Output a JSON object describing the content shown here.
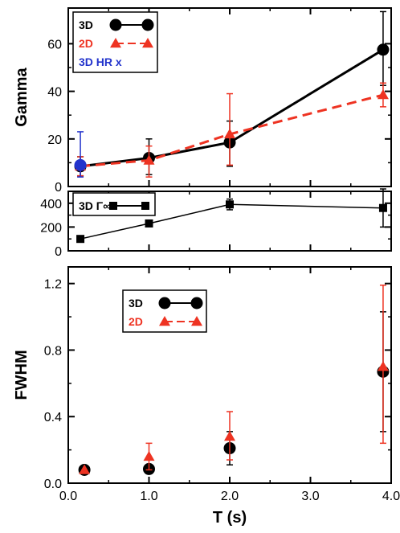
{
  "chart_data": [
    {
      "type": "line",
      "ylabel": "Gamma",
      "xlabel": "",
      "xlim": [
        0,
        4.0
      ],
      "ylim": [
        0,
        75
      ],
      "yticks": [
        0,
        20,
        40,
        60
      ],
      "legend_position": "top-left",
      "series": [
        {
          "name": "3D",
          "color": "#000000",
          "marker": "circle",
          "line": "solid",
          "x": [
            0.15,
            1.0,
            2.0,
            3.9
          ],
          "y": [
            8.5,
            12,
            18.5,
            57.5
          ],
          "err_low": [
            4,
            7,
            10,
            15
          ],
          "err_high": [
            4,
            8,
            9,
            16
          ]
        },
        {
          "name": "2D",
          "color": "#ee3322",
          "marker": "triangle",
          "line": "dashed",
          "x": [
            0.15,
            1.0,
            2.0,
            3.9
          ],
          "y": [
            8.5,
            11,
            22,
            38.5
          ],
          "err_low": [
            4,
            7,
            13,
            5
          ],
          "err_high": [
            4,
            6,
            17,
            5
          ]
        },
        {
          "name": "3D HR x",
          "color": "#2233cc",
          "marker": "circle",
          "line": "none",
          "x": [
            0.15
          ],
          "y": [
            9
          ],
          "err_low": [
            5
          ],
          "err_high": [
            14
          ]
        }
      ]
    },
    {
      "type": "line",
      "ylabel": "",
      "xlabel": "",
      "xlim": [
        0,
        4.0
      ],
      "ylim": [
        0,
        500
      ],
      "yticks": [
        0,
        200,
        400
      ],
      "legend_position": "top-left",
      "series": [
        {
          "name": "3D Γ∞",
          "color": "#000000",
          "marker": "square",
          "line": "solid",
          "x": [
            0.15,
            1.0,
            2.0,
            3.9
          ],
          "y": [
            100,
            230,
            390,
            360
          ],
          "err_low": [
            10,
            25,
            45,
            160
          ],
          "err_high": [
            10,
            25,
            45,
            160
          ]
        }
      ]
    },
    {
      "type": "scatter",
      "ylabel": "FWHM",
      "xlabel": "T (s)",
      "xlim": [
        0,
        4.0
      ],
      "ylim": [
        0,
        1.3
      ],
      "yticks": [
        "0.0",
        "0.4",
        "0.8",
        "1.2"
      ],
      "xticks": [
        "0.0",
        "1.0",
        "2.0",
        "3.0",
        "4.0"
      ],
      "legend_position": "top-left",
      "series": [
        {
          "name": "3D",
          "color": "#000000",
          "marker": "circle",
          "line": "solid",
          "x": [
            0.2,
            1.0,
            2.0,
            3.9
          ],
          "y": [
            0.08,
            0.085,
            0.21,
            0.67
          ],
          "err_low": [
            0,
            0,
            0.1,
            0.36
          ],
          "err_high": [
            0,
            0,
            0.1,
            0.36
          ]
        },
        {
          "name": "2D",
          "color": "#ee3322",
          "marker": "triangle",
          "line": "dashed",
          "x": [
            0.2,
            1.0,
            2.0,
            3.9
          ],
          "y": [
            0.08,
            0.16,
            0.28,
            0.7
          ],
          "err_low": [
            0,
            0.08,
            0.14,
            0.46
          ],
          "err_high": [
            0,
            0.08,
            0.15,
            0.49
          ]
        }
      ]
    }
  ]
}
